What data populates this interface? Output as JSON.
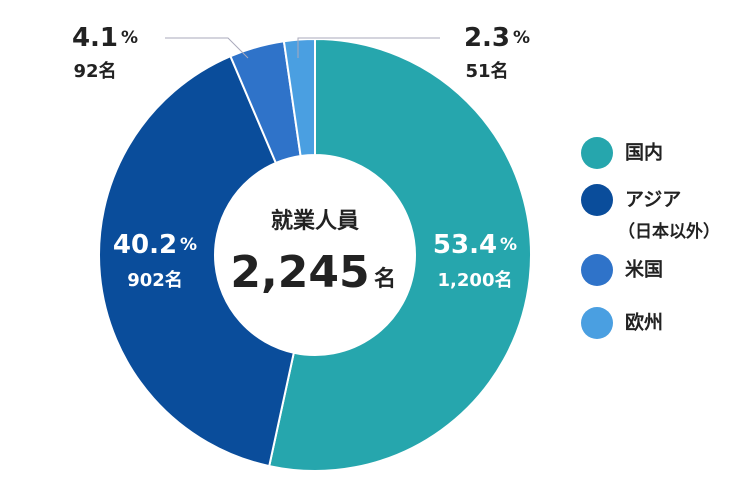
{
  "chart_data": {
    "type": "donut",
    "categories": [
      "国内",
      "アジア",
      "米国",
      "欧州"
    ],
    "legend_notes": [
      null,
      "（日本以外）",
      null,
      null
    ],
    "values": [
      53.4,
      40.2,
      4.1,
      2.3
    ],
    "unit": "%",
    "count_labels": [
      "1,200名",
      "902名",
      "92名",
      "51名"
    ],
    "colors": [
      "#26a6ad",
      "#0a4d9b",
      "#2f73c9",
      "#4a9fe1"
    ],
    "center_label": "就業人員",
    "total_label": "2,245",
    "total_unit": "名"
  }
}
